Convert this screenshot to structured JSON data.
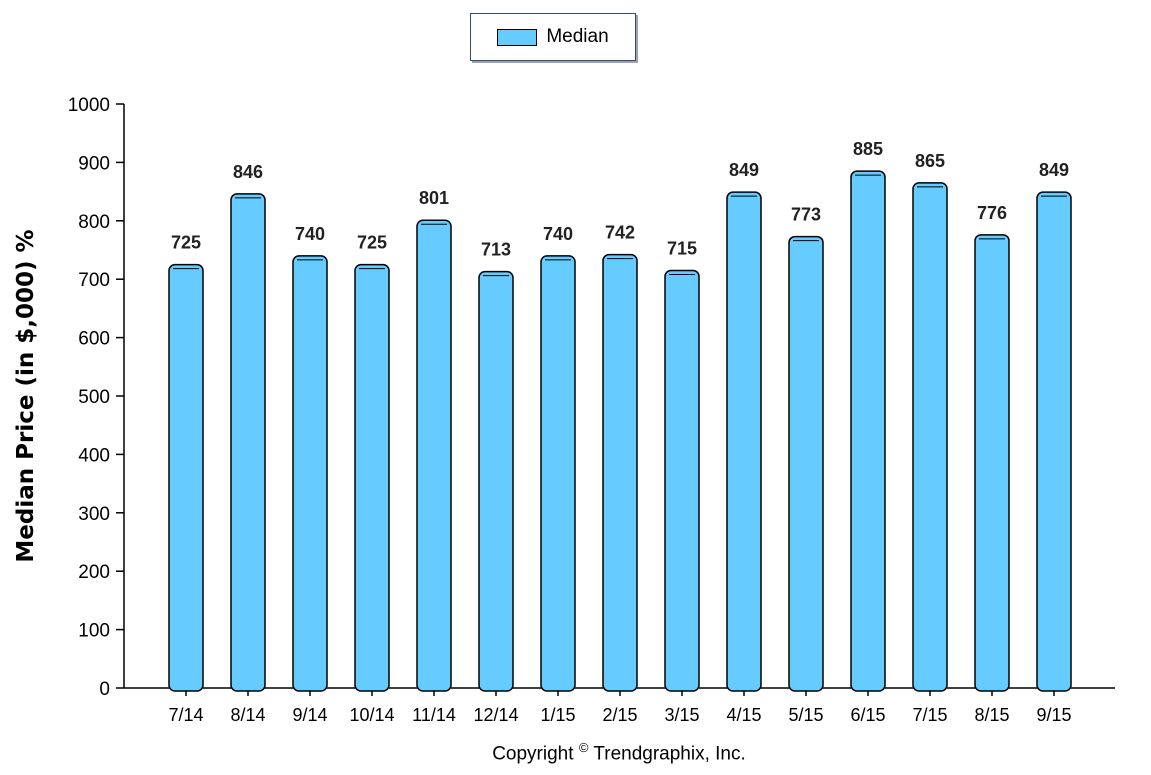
{
  "legend": {
    "label": "Median",
    "swatch_color": "#66ccff"
  },
  "copyright": {
    "prefix": "Copyright",
    "symbol": "©",
    "suffix": "Trendgraphix, Inc."
  },
  "chart_data": {
    "type": "bar",
    "title": "",
    "xlabel": "",
    "ylabel": "Median Price (in $,000) %",
    "ylim": [
      0,
      1000
    ],
    "yticks": [
      0,
      100,
      200,
      300,
      400,
      500,
      600,
      700,
      800,
      900,
      1000
    ],
    "grid": false,
    "legend_position": "top-center",
    "bar_color": "#66ccff",
    "categories": [
      "7/14",
      "8/14",
      "9/14",
      "10/14",
      "11/14",
      "12/14",
      "1/15",
      "2/15",
      "3/15",
      "4/15",
      "5/15",
      "6/15",
      "7/15",
      "8/15",
      "9/15"
    ],
    "series": [
      {
        "name": "Median",
        "values": [
          725,
          846,
          740,
          725,
          801,
          713,
          740,
          742,
          715,
          849,
          773,
          885,
          865,
          776,
          849
        ]
      }
    ]
  }
}
